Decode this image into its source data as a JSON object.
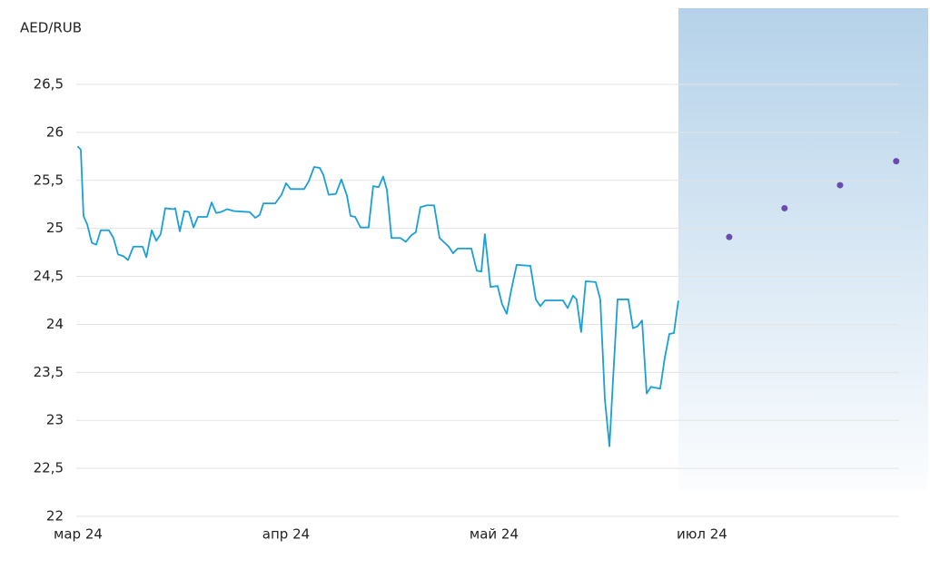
{
  "chart_data": {
    "type": "line",
    "title": "AED/RUB",
    "xlim": [
      0,
      3.948
    ],
    "xticks": [
      {
        "value": 0,
        "label": "мар 24"
      },
      {
        "value": 1,
        "label": "апр 24"
      },
      {
        "value": 2,
        "label": "май 24"
      },
      {
        "value": 3,
        "label": "июл 24"
      }
    ],
    "ylim": [
      22,
      26.5
    ],
    "yticks": [
      22,
      {
        "value": 22.5,
        "label": "22,5"
      },
      23,
      {
        "value": 23.5,
        "label": "23,5"
      },
      24,
      {
        "value": 24.5,
        "label": "24,5"
      },
      25,
      {
        "value": 25.5,
        "label": "25,5"
      },
      26,
      {
        "value": 26.5,
        "label": "26,5"
      }
    ],
    "grid": true,
    "series": [
      {
        "color": "#1a9fd6",
        "mode": "line",
        "x": [
          0,
          0.013,
          0.026,
          0.044,
          0.066,
          0.087,
          0.109,
          0.148,
          0.17,
          0.192,
          0.218,
          0.24,
          0.266,
          0.31,
          0.328,
          0.354,
          0.376,
          0.397,
          0.419,
          0.459,
          0.467,
          0.489,
          0.511,
          0.533,
          0.555,
          0.576,
          0.62,
          0.642,
          0.664,
          0.686,
          0.716,
          0.751,
          0.825,
          0.852,
          0.873,
          0.891,
          0.948,
          0.978,
          1.0,
          1.022,
          1.087,
          1.109,
          1.135,
          1.162,
          1.179,
          1.205,
          1.24,
          1.266,
          1.293,
          1.31,
          1.332,
          1.358,
          1.397,
          1.419,
          1.445,
          1.467,
          1.485,
          1.507,
          1.55,
          1.576,
          1.603,
          1.624,
          1.646,
          1.677,
          1.712,
          1.738,
          1.782,
          1.803,
          1.825,
          1.891,
          1.917,
          1.939,
          1.956,
          1.983,
          2.017,
          2.039,
          2.061,
          2.083,
          2.109,
          2.175,
          2.201,
          2.223,
          2.245,
          2.332,
          2.354,
          2.38,
          2.397,
          2.419,
          2.441,
          2.489,
          2.511,
          2.533,
          2.555,
          2.572,
          2.594,
          2.646,
          2.668,
          2.69,
          2.712,
          2.734,
          2.755,
          2.799,
          2.821,
          2.843,
          2.865,
          2.886
        ],
        "values": [
          25.85,
          25.82,
          25.13,
          25.04,
          24.85,
          24.83,
          24.98,
          24.98,
          24.9,
          24.73,
          24.71,
          24.67,
          24.81,
          24.81,
          24.7,
          24.98,
          24.87,
          24.94,
          25.21,
          25.2,
          25.21,
          24.97,
          25.18,
          25.17,
          25.01,
          25.12,
          25.12,
          25.27,
          25.16,
          25.17,
          25.2,
          25.18,
          25.17,
          25.11,
          25.14,
          25.26,
          25.26,
          25.35,
          25.47,
          25.41,
          25.41,
          25.49,
          25.64,
          25.63,
          25.56,
          25.35,
          25.36,
          25.51,
          25.34,
          25.13,
          25.12,
          25.01,
          25.01,
          25.44,
          25.43,
          25.54,
          25.4,
          24.9,
          24.9,
          24.86,
          24.93,
          24.96,
          25.22,
          25.24,
          25.24,
          24.9,
          24.81,
          24.74,
          24.79,
          24.79,
          24.56,
          24.55,
          24.94,
          24.39,
          24.4,
          24.21,
          24.11,
          24.36,
          24.62,
          24.61,
          24.26,
          24.19,
          24.25,
          24.25,
          24.17,
          24.3,
          24.26,
          23.92,
          24.45,
          24.44,
          24.26,
          23.22,
          22.73,
          23.41,
          24.26,
          24.26,
          23.96,
          23.98,
          24.04,
          23.28,
          23.35,
          23.33,
          23.65,
          23.9,
          23.91,
          24.24
        ]
      },
      {
        "color": "#6a4bb0",
        "mode": "markers",
        "x": [
          3.131,
          3.397,
          3.664,
          3.934
        ],
        "values": [
          24.91,
          25.21,
          25.45,
          25.7
        ]
      }
    ]
  }
}
